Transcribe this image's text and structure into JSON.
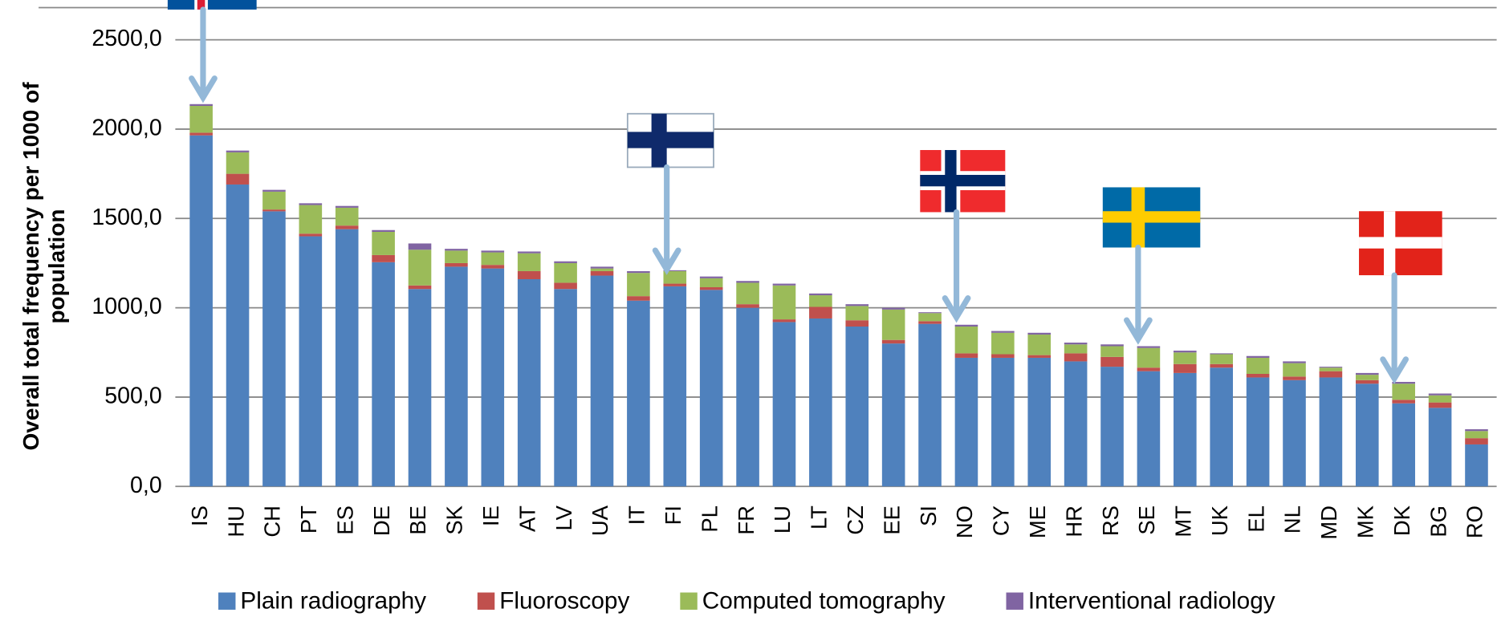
{
  "chart_data": {
    "type": "stacked_bar",
    "y_label": "Overall total frequency per 1000 of population",
    "categories": [
      "IS",
      "HU",
      "CH",
      "PT",
      "ES",
      "DE",
      "BE",
      "SK",
      "IE",
      "AT",
      "LV",
      "UA",
      "IT",
      "FI",
      "PL",
      "FR",
      "LU",
      "LT",
      "CZ",
      "EE",
      "SI",
      "NO",
      "CY",
      "ME",
      "HR",
      "RS",
      "SE",
      "MT",
      "UK",
      "EL",
      "NL",
      "MD",
      "MK",
      "DK",
      "BG",
      "RO"
    ],
    "series": [
      {
        "name": "Plain radiography",
        "color": "#4f81bd",
        "values": [
          1965,
          1690,
          1540,
          1400,
          1440,
          1255,
          1105,
          1230,
          1220,
          1160,
          1105,
          1180,
          1040,
          1120,
          1100,
          1000,
          920,
          940,
          895,
          800,
          910,
          720,
          720,
          720,
          700,
          670,
          645,
          635,
          665,
          610,
          595,
          610,
          575,
          465,
          440,
          235
        ]
      },
      {
        "name": "Fluoroscopy",
        "color": "#c0504d",
        "values": [
          15,
          60,
          10,
          15,
          20,
          40,
          20,
          20,
          20,
          45,
          35,
          25,
          25,
          15,
          15,
          20,
          15,
          65,
          35,
          20,
          15,
          25,
          20,
          15,
          45,
          55,
          20,
          50,
          20,
          20,
          20,
          35,
          20,
          20,
          30,
          35
        ]
      },
      {
        "name": "Computed tomography",
        "color": "#9bbb59",
        "values": [
          150,
          120,
          100,
          160,
          100,
          130,
          200,
          70,
          70,
          100,
          110,
          15,
          130,
          70,
          50,
          120,
          190,
          65,
          80,
          170,
          45,
          150,
          120,
          115,
          50,
          60,
          110,
          65,
          55,
          90,
          75,
          20,
          30,
          90,
          40,
          40
        ]
      },
      {
        "name": "Interventional radiology",
        "color": "#8064a2",
        "values": [
          10,
          10,
          10,
          10,
          10,
          10,
          35,
          10,
          10,
          10,
          10,
          10,
          10,
          5,
          10,
          10,
          10,
          10,
          10,
          10,
          5,
          10,
          10,
          10,
          10,
          10,
          10,
          10,
          5,
          10,
          10,
          5,
          10,
          10,
          10,
          10
        ]
      }
    ],
    "ylim": [
      0,
      2680
    ],
    "yticks": [
      {
        "value": 0,
        "label": "0,0"
      },
      {
        "value": 500,
        "label": "500,0"
      },
      {
        "value": 1000,
        "label": "1000,0"
      },
      {
        "value": 1500,
        "label": "1500,0"
      },
      {
        "value": 2000,
        "label": "2000,0"
      },
      {
        "value": 2500,
        "label": "2500,0"
      }
    ],
    "grid": true
  }
}
